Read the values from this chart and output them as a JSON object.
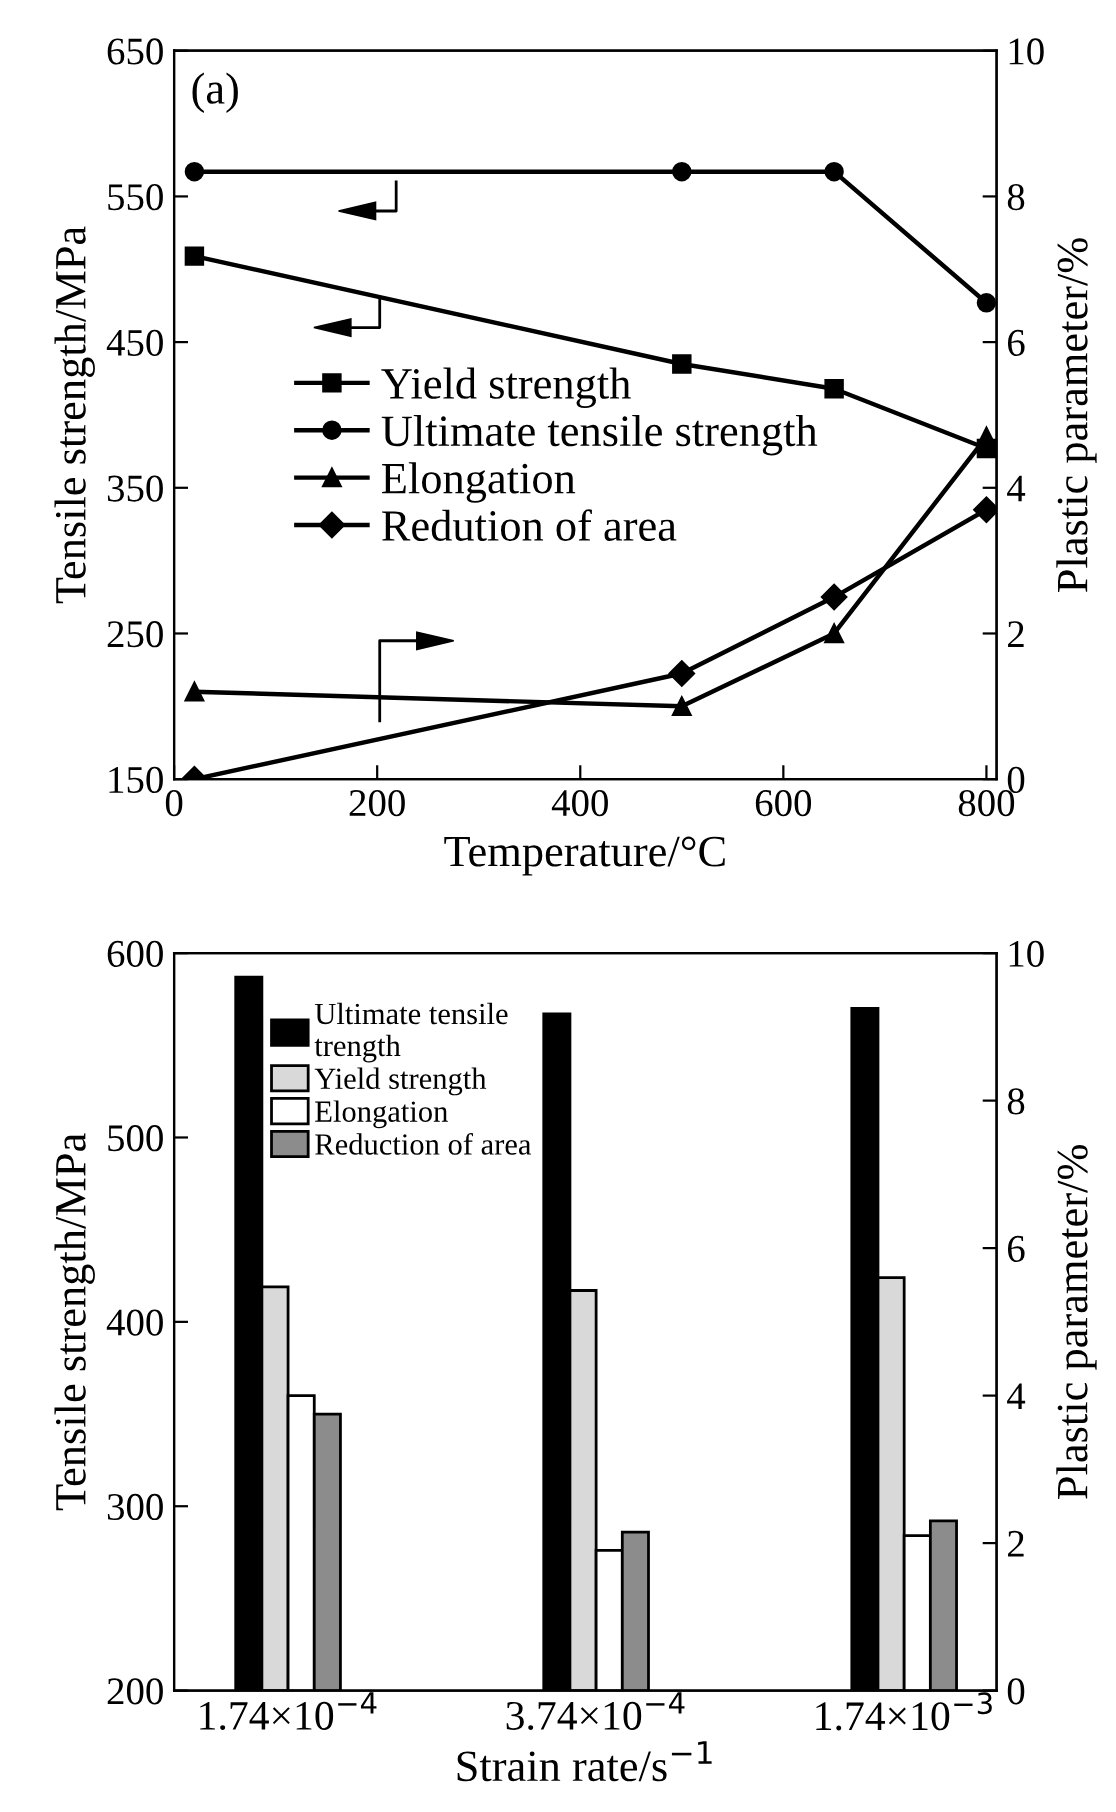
{
  "chart_data": [
    {
      "type": "line",
      "xlabel": "Temperature/°C",
      "ylabel": "Tensile strength/MPa",
      "y2label": "Plastic parameter/%",
      "annotations": [
        "(a)"
      ],
      "x": [
        20,
        500,
        650,
        800
      ],
      "series": [
        {
          "name": "Yield strength",
          "color": "#000000",
          "marker": "square",
          "values": [
            509,
            435,
            418,
            377
          ]
        },
        {
          "name": "Ultimate tensile strength",
          "color": "#000000",
          "marker": "circle",
          "values": [
            567,
            567,
            567,
            477
          ]
        },
        {
          "name": "Elongation",
          "color": "#000000",
          "marker": "triangle",
          "axis": "y2",
          "values": [
            1.2,
            1.0,
            2.0,
            4.7
          ]
        },
        {
          "name": "Redution of area",
          "color": "#000000",
          "marker": "diamond",
          "axis": "y2",
          "values": [
            0,
            1.45,
            2.5,
            3.7
          ]
        }
      ],
      "xlim": [
        0,
        810
      ],
      "xticks": [
        0,
        200,
        400,
        600,
        800
      ],
      "ylim": [
        150,
        650
      ],
      "yticks": [
        150,
        250,
        350,
        450,
        550,
        650
      ],
      "y2lim": [
        0,
        10
      ],
      "y2ticks": [
        0,
        2,
        4,
        6,
        8,
        10
      ],
      "legend": "center left",
      "grid": false,
      "line_style": "solid"
    },
    {
      "type": "bar",
      "xlabel": "Strain rate/s$^{−1}$",
      "ylabel": "Tensile strength/MPa",
      "y2label": "Plastic parameter/%",
      "categories": [
        "1.74×10$^{−4}$",
        "3.74×10$^{−4}$",
        "1.74×10$^{−3}$"
      ],
      "series": [
        {
          "name": "Ultimate tensile\ntrength",
          "color": "#000000",
          "values": [
            587,
            567,
            570
          ]
        },
        {
          "name": "Yield strength",
          "color": "#d9d9d9",
          "values": [
            419,
            417,
            424
          ]
        },
        {
          "name": "Elongation",
          "color": "#ffffff",
          "axis": "y2",
          "values": [
            4.0,
            1.9,
            2.1
          ]
        },
        {
          "name": "Reduction of area",
          "color": "#8c8c8c",
          "axis": "y2",
          "values": [
            3.75,
            2.15,
            2.3
          ]
        }
      ],
      "ylim": [
        200,
        600
      ],
      "yticks": [
        200,
        300,
        400,
        500,
        600
      ],
      "y2lim": [
        0,
        10
      ],
      "y2ticks": [
        0,
        2,
        4,
        6,
        8,
        10
      ],
      "legend": "top left",
      "grid": false
    }
  ]
}
